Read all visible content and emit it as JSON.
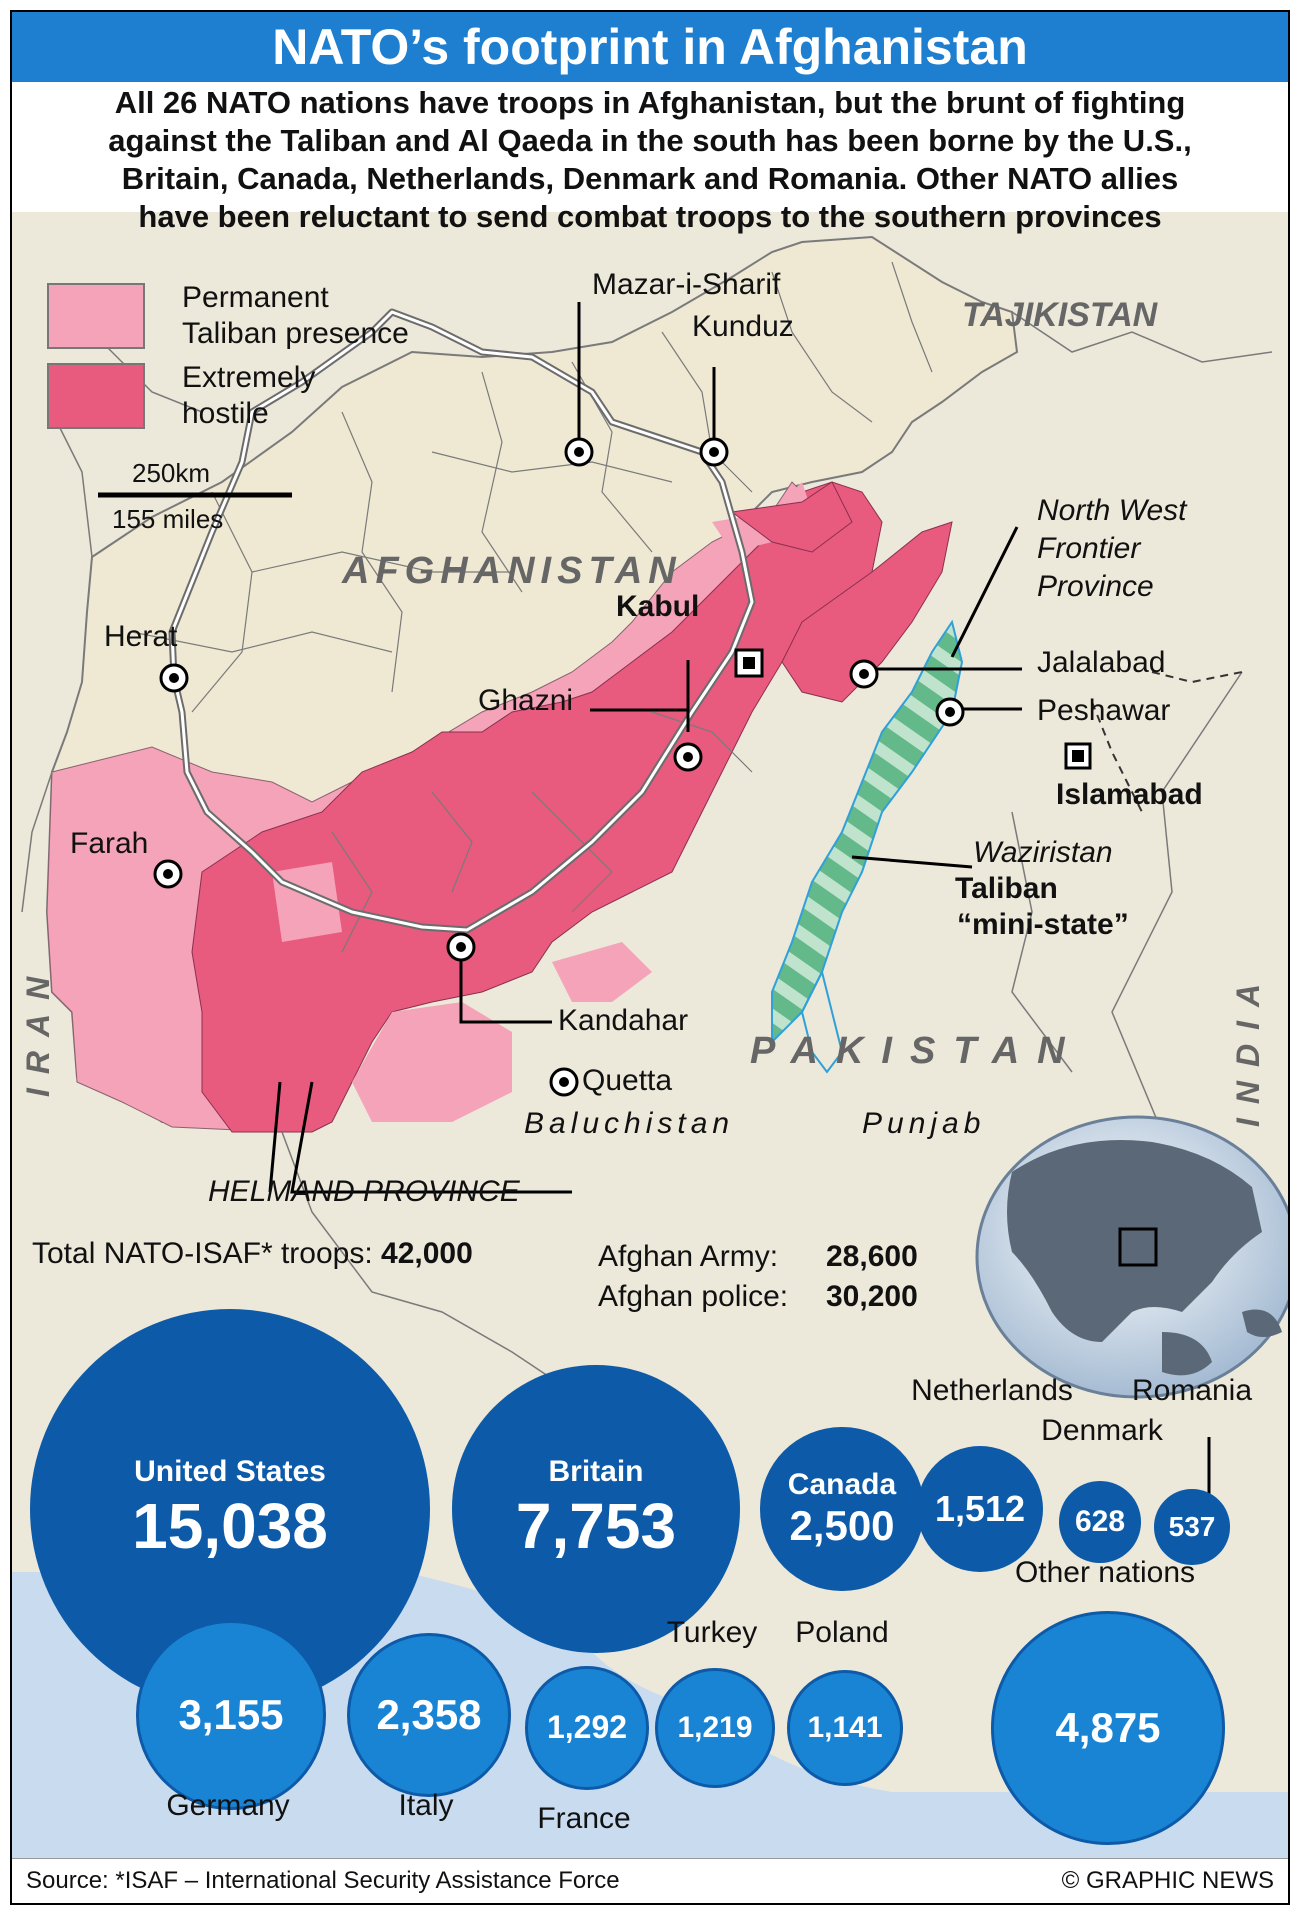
{
  "title": "NATO’s footprint in Afghanistan",
  "intro_lines": [
    "All 26 NATO nations have troops in Afghanistan, but the brunt of fighting",
    "against the Taliban and Al Qaeda in the south has been borne by the U.S.,",
    "Britain, Canada, Netherlands, Denmark and Romania. Other NATO allies",
    "have been reluctant to send combat troops to the southern provinces"
  ],
  "legend": {
    "permanent_line1": "Permanent",
    "permanent_line2": "Taliban presence",
    "hostile_line1": "Extremely",
    "hostile_line2": "hostile",
    "permanent_color": "#f4a3b8",
    "hostile_color": "#e85a7e"
  },
  "scale": {
    "km": "250km",
    "miles": "155 miles"
  },
  "map_labels": {
    "afghanistan": "AFGHANISTAN",
    "tajikistan": "TAJIKISTAN",
    "pakistan": "PAKISTAN",
    "iran": "IRAN",
    "india": "INDIA",
    "baluchistan": "Baluchistan",
    "punjab": "Punjab",
    "helmand": "HELMAND PROVINCE",
    "nwfp_line1": "North West",
    "nwfp_line2": "Frontier",
    "nwfp_line3": "Province",
    "waziristan_line1": "Waziristan",
    "waziristan_line2": "Taliban",
    "waziristan_line3": "“mini-state”"
  },
  "cities": {
    "mazar": "Mazar-i-Sharif",
    "kunduz": "Kunduz",
    "herat": "Herat",
    "kabul": "Kabul",
    "ghazni": "Ghazni",
    "farah": "Farah",
    "kandahar": "Kandahar",
    "quetta": "Quetta",
    "jalalabad": "Jalalabad",
    "peshawar": "Peshawar",
    "islamabad": "Islamabad"
  },
  "stats": {
    "total_label": "Total NATO-ISAF* troops:",
    "total_value": "42,000",
    "army_label": "Afghan Army:",
    "army_value": "28,600",
    "police_label": "Afghan police:",
    "police_value": "30,200"
  },
  "chart_data": {
    "type": "bubble",
    "title": "Total NATO-ISAF* troops: 42,000",
    "unit": "troops",
    "categories": [
      "United States",
      "Britain",
      "Canada",
      "Netherlands",
      "Denmark",
      "Romania",
      "Germany",
      "Italy",
      "France",
      "Turkey",
      "Poland",
      "Other nations"
    ],
    "values": [
      15038,
      7753,
      2500,
      1512,
      628,
      537,
      3155,
      2358,
      1292,
      1219,
      1141,
      4875
    ],
    "labels": [
      "15,038",
      "7,753",
      "2,500",
      "1,512",
      "628",
      "537",
      "3,155",
      "2,358",
      "1,292",
      "1,219",
      "1,141",
      "4,875"
    ],
    "southern_combat_group": [
      "United States",
      "Britain",
      "Canada",
      "Netherlands",
      "Denmark",
      "Romania"
    ],
    "colors": {
      "southern": "#0d5aa8",
      "other": "#1a84d4"
    }
  },
  "footer": {
    "source": "Source: *ISAF – International Security Assistance Force",
    "credit": "© GRAPHIC NEWS"
  },
  "colors": {
    "title_bar": "#1e7fd0",
    "land": "#ece8da",
    "afghan_land": "#efe9d4",
    "sea": "#c9dcef",
    "waziristan": "#63b989"
  }
}
